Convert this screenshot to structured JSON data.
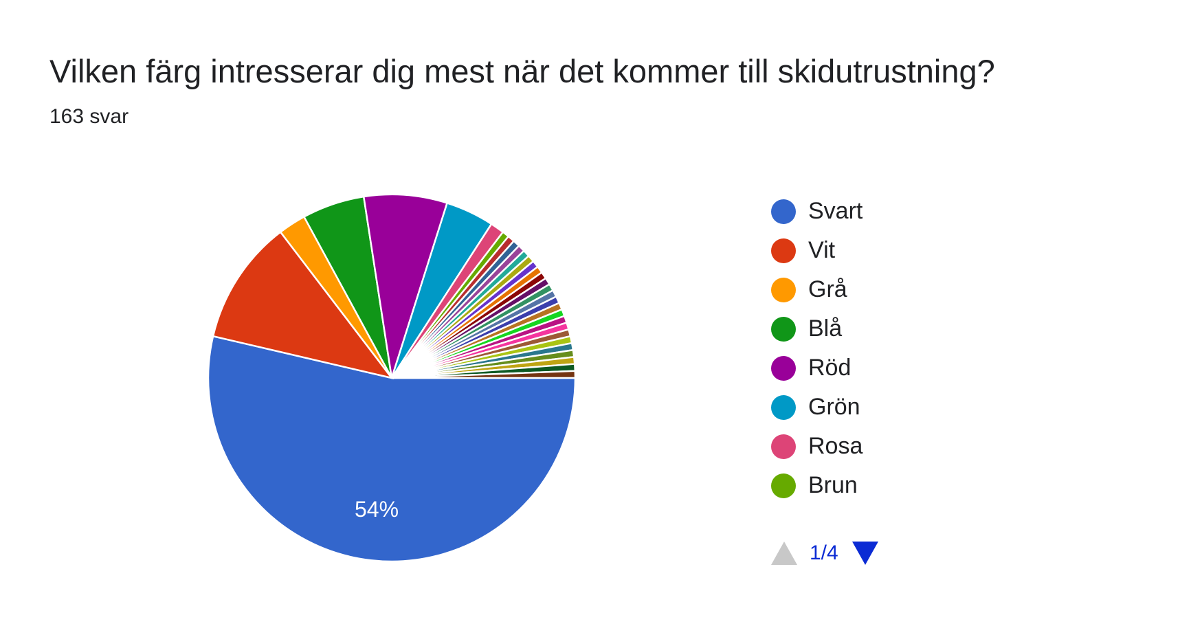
{
  "header": {
    "title": "Vilken färg intresserar dig mest när det kommer till skidutrustning?",
    "response_count": "163 svar"
  },
  "chart_data": {
    "type": "pie",
    "title": "Vilken färg intresserar dig mest när det kommer till skidutrustning?",
    "slices": [
      {
        "label": "Svart",
        "value": 88,
        "color": "#3366cc"
      },
      {
        "label": "Vit",
        "value": 18,
        "color": "#dc3912"
      },
      {
        "label": "Grå",
        "value": 4,
        "color": "#ff9900"
      },
      {
        "label": "Blå",
        "value": 9,
        "color": "#109618"
      },
      {
        "label": "Röd",
        "value": 12,
        "color": "#990099"
      },
      {
        "label": "Grön",
        "value": 7,
        "color": "#0099c6"
      },
      {
        "label": "Rosa",
        "value": 2,
        "color": "#dd4477"
      },
      {
        "label": "Brun",
        "value": 1,
        "color": "#66aa00"
      },
      {
        "label": "",
        "value": 1,
        "color": "#b82e2e"
      },
      {
        "label": "",
        "value": 1,
        "color": "#316395"
      },
      {
        "label": "",
        "value": 1,
        "color": "#994499"
      },
      {
        "label": "",
        "value": 1,
        "color": "#22aa99"
      },
      {
        "label": "",
        "value": 1,
        "color": "#aaaa11"
      },
      {
        "label": "",
        "value": 1,
        "color": "#6633cc"
      },
      {
        "label": "",
        "value": 1,
        "color": "#e67300"
      },
      {
        "label": "",
        "value": 1,
        "color": "#8b0707"
      },
      {
        "label": "",
        "value": 1,
        "color": "#651067"
      },
      {
        "label": "",
        "value": 1,
        "color": "#329262"
      },
      {
        "label": "",
        "value": 1,
        "color": "#5574a6"
      },
      {
        "label": "",
        "value": 1,
        "color": "#3b3eac"
      },
      {
        "label": "",
        "value": 1,
        "color": "#b77322"
      },
      {
        "label": "",
        "value": 1,
        "color": "#16d620"
      },
      {
        "label": "",
        "value": 1,
        "color": "#b91383"
      },
      {
        "label": "",
        "value": 1,
        "color": "#f4359e"
      },
      {
        "label": "",
        "value": 1,
        "color": "#9c5935"
      },
      {
        "label": "",
        "value": 1,
        "color": "#a9c413"
      },
      {
        "label": "",
        "value": 1,
        "color": "#2a778d"
      },
      {
        "label": "",
        "value": 1,
        "color": "#668d1c"
      },
      {
        "label": "",
        "value": 1,
        "color": "#bea413"
      },
      {
        "label": "",
        "value": 1,
        "color": "#0c5922"
      },
      {
        "label": "",
        "value": 1,
        "color": "#743411"
      }
    ],
    "data_labels": [
      {
        "slice_index": 0,
        "text": "54%"
      }
    ],
    "legend_position": "right"
  },
  "legend": {
    "items": [
      {
        "label": "Svart",
        "color": "#3366cc"
      },
      {
        "label": "Vit",
        "color": "#dc3912"
      },
      {
        "label": "Grå",
        "color": "#ff9900"
      },
      {
        "label": "Blå",
        "color": "#109618"
      },
      {
        "label": "Röd",
        "color": "#990099"
      },
      {
        "label": "Grön",
        "color": "#0099c6"
      },
      {
        "label": "Rosa",
        "color": "#dd4477"
      },
      {
        "label": "Brun",
        "color": "#66aa00"
      }
    ],
    "pager": {
      "text": "1/4",
      "prev_icon": "triangle-up-icon",
      "next_icon": "triangle-down-icon",
      "active_color": "#0b2bd4",
      "disabled_color": "#c8c8c8"
    }
  }
}
